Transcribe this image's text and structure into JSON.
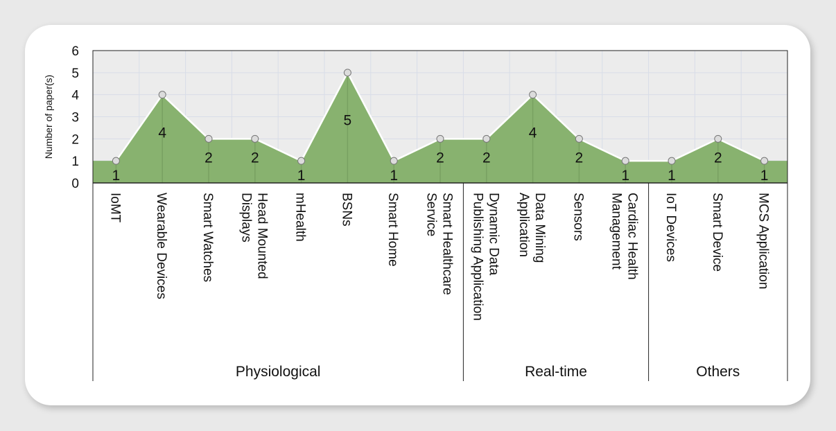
{
  "chart_data": {
    "type": "area",
    "ylabel": "Number of paper(s)",
    "xlabel": "",
    "ylim": [
      0,
      6
    ],
    "yticks": [
      0,
      1,
      2,
      3,
      4,
      5,
      6
    ],
    "grid": true,
    "categories": [
      {
        "lines": [
          "IoMT"
        ]
      },
      {
        "lines": [
          "Wearable Devices"
        ]
      },
      {
        "lines": [
          "Smart Watches"
        ]
      },
      {
        "lines": [
          "Head Mounted",
          "Displays"
        ]
      },
      {
        "lines": [
          "mHealth"
        ]
      },
      {
        "lines": [
          "BSNs"
        ]
      },
      {
        "lines": [
          "Smart Home"
        ]
      },
      {
        "lines": [
          "Smart Healthcare",
          "Service"
        ]
      },
      {
        "lines": [
          "Dynamic Data",
          "Publishing Application"
        ]
      },
      {
        "lines": [
          "Data Mining",
          "Application"
        ]
      },
      {
        "lines": [
          "Sensors"
        ]
      },
      {
        "lines": [
          "Cardiac Health",
          "Management"
        ]
      },
      {
        "lines": [
          "IoT Devices"
        ]
      },
      {
        "lines": [
          "Smart Device"
        ]
      },
      {
        "lines": [
          "MCS Application"
        ]
      }
    ],
    "values": [
      1,
      4,
      2,
      2,
      1,
      5,
      1,
      2,
      2,
      4,
      2,
      1,
      1,
      2,
      1
    ],
    "groups": [
      {
        "name": "Physiological",
        "start": 0,
        "end": 7
      },
      {
        "name": "Real-time",
        "start": 8,
        "end": 11
      },
      {
        "name": "Others",
        "start": 12,
        "end": 14
      }
    ],
    "colors": {
      "area": "#88b26f",
      "line": "#ffffff",
      "plot_bg": "#ececec",
      "grid": "#d8dde8"
    }
  }
}
